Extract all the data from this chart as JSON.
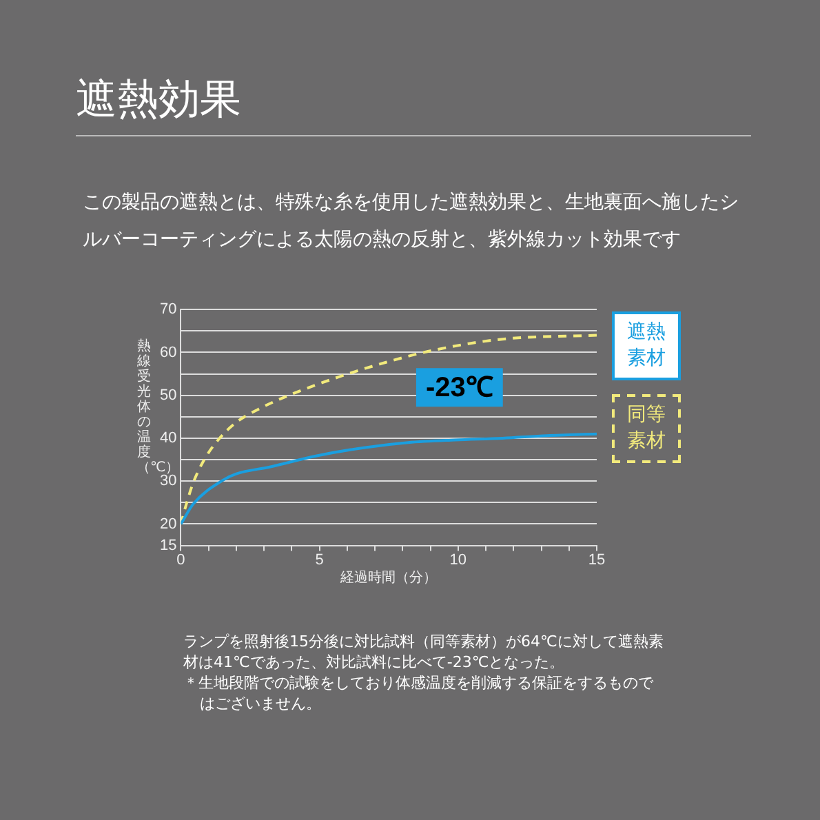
{
  "chart_data": {
    "type": "line",
    "title": "遮熱効果",
    "subtitle": "この製品の遮熱とは、特殊な糸を使用した遮熱効果と、生地裏面へ施したシルバーコーティングによる太陽の熱の反射と、紫外線カット効果です",
    "xlabel": "経過時間（分）",
    "ylabel": "熱線受光体の温度（℃）",
    "series": [
      {
        "name": "遮熱素材",
        "color": "#1a9fe0",
        "line_style": "solid",
        "x": [
          0,
          0.45,
          1.54,
          2.0,
          3.2,
          4.9,
          6.6,
          8.2,
          9.9,
          11.6,
          13.2,
          15
        ],
        "values": [
          20,
          24.7,
          30.3,
          31.7,
          33.3,
          35.9,
          37.8,
          39.0,
          39.6,
          40.0,
          40.6,
          41
        ]
      },
      {
        "name": "同等素材",
        "color": "#f2ea7c",
        "line_style": "dashed",
        "x": [
          0,
          0.2,
          0.45,
          0.87,
          1.37,
          2.0,
          2.9,
          4.05,
          5.7,
          7.4,
          9.1,
          11.6,
          15
        ],
        "values": [
          20,
          24.7,
          29.7,
          35.3,
          39.8,
          43.7,
          47.1,
          50.4,
          54.3,
          57.7,
          60.5,
          63.1,
          64
        ]
      }
    ],
    "xlim": [
      0,
      15
    ],
    "xticks": [
      0,
      {
        "value": 1,
        "label": null
      },
      {
        "value": 2,
        "label": null
      },
      {
        "value": 3,
        "label": null
      },
      {
        "value": 4,
        "label": null
      },
      5,
      {
        "value": 6,
        "label": null
      },
      {
        "value": 7,
        "label": null
      },
      {
        "value": 8,
        "label": null
      },
      {
        "value": 9,
        "label": null
      },
      10,
      {
        "value": 11,
        "label": null
      },
      {
        "value": 12,
        "label": null
      },
      {
        "value": 13,
        "label": null
      },
      {
        "value": 14,
        "label": null
      },
      15
    ],
    "ylim": [
      15,
      70
    ],
    "yticks": [
      15,
      20,
      {
        "value": 25,
        "label": null
      },
      30,
      {
        "value": 35,
        "label": null
      },
      40,
      {
        "value": 45,
        "label": null
      },
      50,
      {
        "value": 55,
        "label": null
      },
      60,
      {
        "value": 65,
        "label": null
      },
      70
    ],
    "grid": "y",
    "legend": "right",
    "marker": "none",
    "annotations": [
      "-23℃",
      "ランプを照射後15分後に対比試料（同等素材）が64℃に対して遮熱素材は41℃であった、対比試料に比べて-23℃となった。",
      "＊生地段階での試験をしており体感温度を削減する保証をするものではございません。"
    ]
  }
}
